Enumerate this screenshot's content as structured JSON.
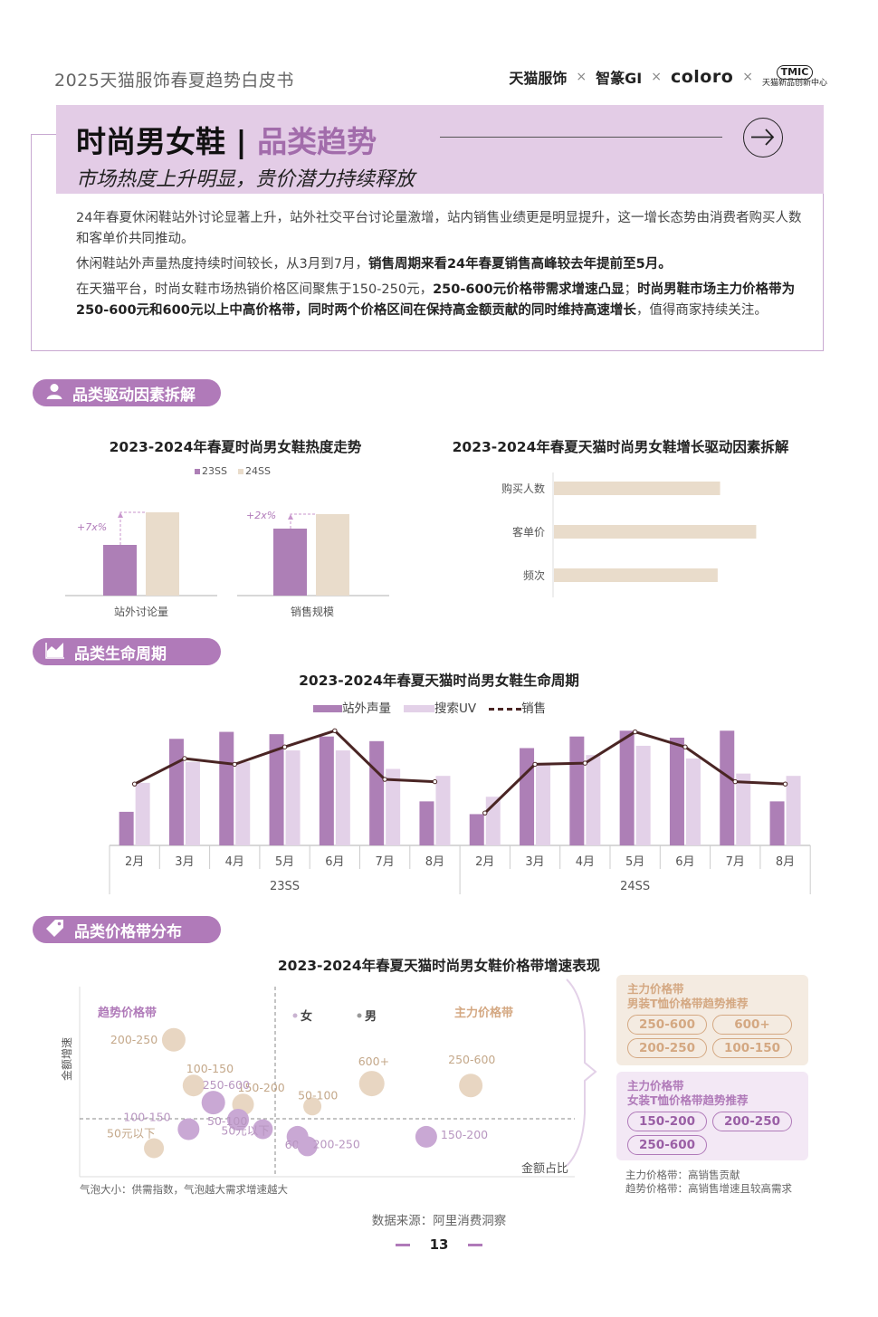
{
  "doc_title": "2025天猫服饰春夏趋势白皮书",
  "brands": {
    "b1": "天猫服饰",
    "b2": "智篆GI",
    "b3": "coloro",
    "b4_mark": "TMIC",
    "b4_name": "天猫新品创新中心",
    "sep": "×"
  },
  "header": {
    "title_left": "时尚男女鞋",
    "divider": "|",
    "title_right": "品类趋势",
    "subtitle": "市场热度上升明显，贵价潜力持续释放"
  },
  "paragraphs": [
    {
      "segments": [
        {
          "t": "24年春夏休闲鞋站外讨论显著上升，站外社交平台讨论量激增，站内销售业绩更是明显提升，这一增长态势由消费者购买人数和客单价共同推动。",
          "b": false
        }
      ]
    },
    {
      "segments": [
        {
          "t": "休闲鞋站外声量热度持续时间较长，从3月到7月，",
          "b": false
        },
        {
          "t": "销售周期来看24年春夏销售高峰较去年提前至5月。",
          "b": true
        }
      ]
    },
    {
      "segments": [
        {
          "t": "在天猫平台，时尚女鞋市场热销价格区间聚焦于150-250元，",
          "b": false
        },
        {
          "t": "250-600元价格带需求增速凸显",
          "b": true
        },
        {
          "t": "；",
          "b": false
        },
        {
          "t": "时尚男鞋市场主力价格带为250-600元和600元以上中高价格带，同时两个价格区间在保持高金额贡献的同时维持高速增长",
          "b": true
        },
        {
          "t": "，值得商家持续关注。",
          "b": false
        }
      ]
    }
  ],
  "sections": {
    "drivers": "品类驱动因素拆解",
    "lifecycle": "品类生命周期",
    "price": "品类价格带分布"
  },
  "chart_data": [
    {
      "type": "bar",
      "title": "2023-2024年春夏时尚男女鞋热度走势",
      "categories": [
        "站外讨论量",
        "销售规模"
      ],
      "series": [
        {
          "name": "23SS",
          "values": [
            1.0,
            1.0
          ],
          "color": "#ad7fb6"
        },
        {
          "name": "24SS",
          "values": [
            1.7,
            1.2
          ],
          "color": "#e9dccb"
        }
      ],
      "annotations": [
        "+7x%",
        "+2x%"
      ]
    },
    {
      "type": "bar",
      "orientation": "horizontal",
      "title": "2023-2024年春夏天猫时尚男女鞋增长驱动因素拆解",
      "categories": [
        "购买人数",
        "客单价",
        "频次"
      ],
      "values": [
        0.69,
        0.84,
        0.68
      ],
      "color": "#e9dccb"
    },
    {
      "type": "bar",
      "title": "2023-2024年春夏天猫时尚男女鞋生命周期",
      "groups": [
        "23SS",
        "24SS"
      ],
      "months": [
        "2月",
        "3月",
        "4月",
        "5月",
        "6月",
        "7月",
        "8月"
      ],
      "series": [
        {
          "name": "站外声量",
          "kind": "bar",
          "color": "#ad7fb6",
          "values": [
            0.29,
            0.92,
            0.98,
            0.96,
            0.94,
            0.9,
            0.38,
            0.27,
            0.84,
            0.94,
            0.99,
            0.93,
            0.99,
            0.38
          ]
        },
        {
          "name": "搜索UV",
          "kind": "bar",
          "color": "#e3d1e8",
          "values": [
            0.54,
            0.72,
            0.72,
            0.82,
            0.82,
            0.66,
            0.6,
            0.42,
            0.7,
            0.78,
            0.86,
            0.75,
            0.62,
            0.6
          ]
        },
        {
          "name": "销售",
          "kind": "line",
          "color": "#4a2524",
          "values": [
            0.53,
            0.75,
            0.7,
            0.85,
            0.99,
            0.57,
            0.55,
            0.28,
            0.7,
            0.71,
            0.98,
            0.85,
            0.55,
            0.53
          ]
        }
      ]
    },
    {
      "type": "scatter",
      "title": "2023-2024年春夏天猫时尚男女鞋价格带增速表现",
      "xlabel": "金额占比",
      "ylabel": "金额增速",
      "legend": [
        {
          "name": "女",
          "color": "#c9b3d1"
        },
        {
          "name": "男",
          "color": "#c9b3d1"
        }
      ],
      "quadrant_labels": [
        "趋势价格带",
        "主力价格带"
      ],
      "series": [
        {
          "name": "男",
          "color": "#e8d6c2",
          "points": [
            {
              "label": "200-250",
              "x": 0.19,
              "y": 0.72,
              "size": 13
            },
            {
              "label": "100-150",
              "x": 0.23,
              "y": 0.48,
              "size": 12
            },
            {
              "label": "150-200",
              "x": 0.33,
              "y": 0.38,
              "size": 12
            },
            {
              "label": "50-100",
              "x": 0.47,
              "y": 0.37,
              "size": 10
            },
            {
              "label": "600+",
              "x": 0.59,
              "y": 0.49,
              "size": 14
            },
            {
              "label": "250-600",
              "x": 0.79,
              "y": 0.48,
              "size": 13
            },
            {
              "label": "50元以下",
              "x": 0.15,
              "y": 0.15,
              "size": 11
            }
          ]
        },
        {
          "name": "女",
          "color": "#c9a8d4",
          "points": [
            {
              "label": "250-600",
              "x": 0.27,
              "y": 0.39,
              "size": 13
            },
            {
              "label": "100-150",
              "x": 0.22,
              "y": 0.25,
              "size": 12
            },
            {
              "label": "50-100",
              "x": 0.32,
              "y": 0.3,
              "size": 12
            },
            {
              "label": "50元以下",
              "x": 0.37,
              "y": 0.25,
              "size": 11
            },
            {
              "label": "600+",
              "x": 0.44,
              "y": 0.21,
              "size": 12
            },
            {
              "label": "200-250",
              "x": 0.46,
              "y": 0.16,
              "size": 11
            },
            {
              "label": "150-200",
              "x": 0.7,
              "y": 0.21,
              "size": 12
            }
          ]
        }
      ],
      "note": "气泡大小：供需指数，气泡越大需求增速越大"
    }
  ],
  "drivers_legend": [
    "23SS",
    "24SS"
  ],
  "drivers_xlabels": [
    "站外讨论量",
    "销售规模"
  ],
  "drivers_annots": [
    "+7x%",
    "+2x%"
  ],
  "lifecycle_legend": [
    "站外声量",
    "搜索UV",
    "销售"
  ],
  "recommend": {
    "men": {
      "title1": "主力价格带",
      "title2": "男装T恤价格带趋势推荐",
      "pills": [
        "250-600",
        "600+",
        "200-250",
        "100-150"
      ]
    },
    "women": {
      "title1": "主力价格带",
      "title2": "女装T恤价格带趋势推荐",
      "pills": [
        "150-200",
        "200-250",
        "250-600"
      ]
    },
    "legend_lines": [
      "主力价格带：高销售贡献",
      "趋势价格带：高销售增速且较高需求"
    ]
  },
  "source": "数据来源：阿里消费洞察",
  "page_number": "13",
  "colors": {
    "accent": "#b07ab9",
    "band": "#e3cce6",
    "beige": "#e9dccb",
    "lavender": "#e3d1e8",
    "purple": "#ad7fb6",
    "line": "#4a2524"
  }
}
